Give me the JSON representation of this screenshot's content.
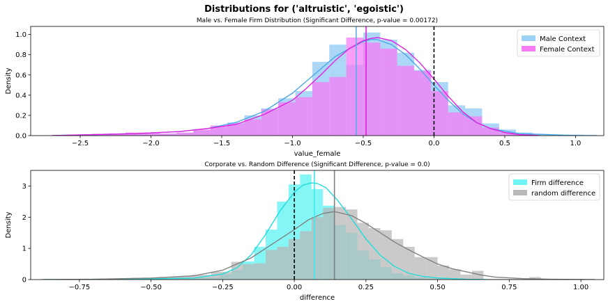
{
  "figure": {
    "suptitle": "Distributions for ('altruistic', 'egoistic')"
  },
  "chart_data": [
    {
      "type": "histogram+kde",
      "title": "Male vs. Female Firm Distribution (Significant Difference, p-value = 0.00172)",
      "xlabel": "value_female",
      "ylabel": "Density",
      "xlim": [
        -2.85,
        1.2
      ],
      "ylim": [
        0,
        1.08
      ],
      "xticks": [
        -2.5,
        -2.0,
        -1.5,
        -1.0,
        -0.5,
        0.0,
        0.5,
        1.0
      ],
      "xtick_labels": [
        "−2.5",
        "−2.0",
        "−1.5",
        "−1.0",
        "−0.5",
        "0.0",
        "0.5",
        "1.0"
      ],
      "yticks": [
        0.0,
        0.2,
        0.4,
        0.6,
        0.8,
        1.0
      ],
      "ytick_labels": [
        "0.0",
        "0.2",
        "0.4",
        "0.6",
        "0.8",
        "1.0"
      ],
      "legend_position": "top-right",
      "vlines": [
        {
          "x": 0.0,
          "style": "dashed",
          "color": "#000000"
        },
        {
          "x": -0.55,
          "style": "solid",
          "color": "#5aaee8"
        },
        {
          "x": -0.48,
          "style": "solid",
          "color": "#e020e0"
        }
      ],
      "series": [
        {
          "name": "Male Context",
          "color": "#9dd0f5",
          "line_color": "#4aa8e6",
          "bin_edges": [
            -2.66,
            -2.54,
            -2.42,
            -2.3,
            -2.18,
            -2.06,
            -1.94,
            -1.82,
            -1.7,
            -1.58,
            -1.46,
            -1.34,
            -1.22,
            -1.1,
            -0.98,
            -0.86,
            -0.74,
            -0.62,
            -0.5,
            -0.38,
            -0.26,
            -0.14,
            -0.02,
            0.1,
            0.22,
            0.34,
            0.46,
            0.58,
            0.7,
            0.82,
            0.94,
            1.06
          ],
          "bin_density": [
            0.0,
            0.0,
            0.01,
            0.02,
            0.02,
            0.02,
            0.02,
            0.03,
            0.05,
            0.08,
            0.13,
            0.2,
            0.27,
            0.37,
            0.44,
            0.73,
            0.9,
            0.7,
            1.02,
            0.95,
            0.82,
            0.65,
            0.53,
            0.3,
            0.27,
            0.12,
            0.06,
            0.03,
            0.01,
            0.0,
            0.01
          ],
          "kde": {
            "x": [
              -2.7,
              -2.4,
              -2.1,
              -1.8,
              -1.6,
              -1.4,
              -1.2,
              -1.0,
              -0.9,
              -0.8,
              -0.7,
              -0.6,
              -0.5,
              -0.45,
              -0.4,
              -0.3,
              -0.2,
              -0.1,
              0.0,
              0.1,
              0.2,
              0.3,
              0.4,
              0.6,
              0.8,
              1.0,
              1.15
            ],
            "y": [
              0.0,
              0.01,
              0.02,
              0.04,
              0.07,
              0.13,
              0.24,
              0.42,
              0.54,
              0.66,
              0.78,
              0.86,
              0.93,
              0.95,
              0.95,
              0.9,
              0.8,
              0.66,
              0.5,
              0.35,
              0.22,
              0.13,
              0.07,
              0.02,
              0.01,
              0.0,
              0.0
            ]
          }
        },
        {
          "name": "Female Context",
          "color": "#f57cf5",
          "line_color": "#e020e0",
          "bin_edges": [
            -2.66,
            -2.54,
            -2.42,
            -2.3,
            -2.18,
            -2.06,
            -1.94,
            -1.82,
            -1.7,
            -1.58,
            -1.46,
            -1.34,
            -1.22,
            -1.1,
            -0.98,
            -0.86,
            -0.74,
            -0.62,
            -0.5,
            -0.38,
            -0.26,
            -0.14,
            -0.02,
            0.1,
            0.22,
            0.34,
            0.46,
            0.58,
            0.7,
            0.82,
            0.94,
            1.06
          ],
          "bin_density": [
            0.0,
            0.0,
            0.01,
            0.02,
            0.03,
            0.03,
            0.02,
            0.03,
            0.06,
            0.1,
            0.12,
            0.16,
            0.26,
            0.33,
            0.38,
            0.53,
            0.58,
            0.97,
            0.92,
            0.86,
            0.69,
            0.64,
            0.44,
            0.23,
            0.19,
            0.08,
            0.03,
            0.01,
            0.0,
            0.0,
            0.0
          ],
          "kde": {
            "x": [
              -2.7,
              -2.4,
              -2.1,
              -1.8,
              -1.6,
              -1.4,
              -1.2,
              -1.0,
              -0.9,
              -0.8,
              -0.7,
              -0.6,
              -0.5,
              -0.45,
              -0.4,
              -0.3,
              -0.2,
              -0.1,
              0.0,
              0.1,
              0.2,
              0.3,
              0.4,
              0.5,
              0.6,
              0.75
            ],
            "y": [
              0.0,
              0.01,
              0.02,
              0.04,
              0.07,
              0.11,
              0.21,
              0.35,
              0.47,
              0.6,
              0.74,
              0.86,
              0.94,
              0.96,
              0.97,
              0.94,
              0.85,
              0.72,
              0.56,
              0.39,
              0.24,
              0.13,
              0.07,
              0.03,
              0.01,
              0.0
            ]
          }
        }
      ]
    },
    {
      "type": "histogram+kde",
      "title": "Corporate vs. Random Difference (Significant Difference, p-value = 0.0)",
      "xlabel": "difference",
      "ylabel": "Density",
      "xlim": [
        -0.92,
        1.08
      ],
      "ylim": [
        0,
        3.5
      ],
      "xticks": [
        -0.75,
        -0.5,
        -0.25,
        0.0,
        0.25,
        0.5,
        0.75,
        1.0
      ],
      "xtick_labels": [
        "−0.75",
        "−0.50",
        "−0.25",
        "0.00",
        "0.25",
        "0.50",
        "0.75",
        "1.00"
      ],
      "yticks": [
        0,
        1,
        2,
        3
      ],
      "ytick_labels": [
        "0",
        "1",
        "2",
        "3"
      ],
      "legend_position": "top-right",
      "vlines": [
        {
          "x": 0.0,
          "style": "dashed",
          "color": "#000000"
        },
        {
          "x": 0.07,
          "style": "solid",
          "color": "#40e8e8"
        },
        {
          "x": 0.14,
          "style": "solid",
          "color": "#808080"
        }
      ],
      "series": [
        {
          "name": "Firm difference",
          "color": "#6ff5f5",
          "line_color": "#20dcdc",
          "bin_edges": [
            -0.89,
            -0.82,
            -0.75,
            -0.68,
            -0.61,
            -0.54,
            -0.47,
            -0.4,
            -0.33,
            -0.26,
            -0.22,
            -0.18,
            -0.14,
            -0.1,
            -0.06,
            -0.02,
            0.02,
            0.06,
            0.1,
            0.14,
            0.18,
            0.22,
            0.26,
            0.3,
            0.34,
            0.38,
            0.42,
            0.46,
            0.5,
            0.54,
            0.58,
            0.62,
            0.66
          ],
          "bin_density": [
            0.01,
            0.0,
            0.0,
            0.0,
            0.0,
            0.02,
            0.03,
            0.04,
            0.06,
            0.17,
            0.3,
            0.58,
            1.05,
            1.6,
            2.5,
            3.05,
            3.37,
            2.9,
            2.37,
            1.75,
            1.5,
            0.93,
            0.65,
            0.4,
            0.2,
            0.13,
            0.07,
            0.03,
            0.02,
            0.01,
            0.0,
            0.0
          ],
          "kde": {
            "x": [
              -0.88,
              -0.7,
              -0.5,
              -0.35,
              -0.25,
              -0.2,
              -0.15,
              -0.1,
              -0.05,
              0.0,
              0.03,
              0.06,
              0.08,
              0.11,
              0.15,
              0.2,
              0.25,
              0.3,
              0.35,
              0.4,
              0.45,
              0.5,
              0.55,
              0.6,
              0.67
            ],
            "y": [
              0.0,
              0.01,
              0.02,
              0.05,
              0.18,
              0.38,
              0.8,
              1.45,
              2.2,
              2.8,
              3.03,
              3.1,
              3.08,
              2.95,
              2.55,
              1.95,
              1.3,
              0.78,
              0.42,
              0.2,
              0.1,
              0.05,
              0.03,
              0.01,
              0.0
            ]
          }
        },
        {
          "name": "random difference",
          "color": "#b8b8b8",
          "line_color": "#808080",
          "bin_edges": [
            -0.57,
            -0.5,
            -0.43,
            -0.36,
            -0.29,
            -0.22,
            -0.18,
            -0.14,
            -0.1,
            -0.06,
            -0.02,
            0.02,
            0.06,
            0.1,
            0.14,
            0.18,
            0.22,
            0.26,
            0.3,
            0.34,
            0.38,
            0.42,
            0.46,
            0.5,
            0.54,
            0.58,
            0.62,
            0.66,
            0.74,
            0.82,
            0.86
          ],
          "bin_density": [
            0.05,
            0.06,
            0.1,
            0.15,
            0.25,
            0.57,
            0.5,
            0.52,
            0.95,
            1.05,
            1.3,
            1.55,
            2.0,
            2.3,
            2.33,
            2.25,
            1.82,
            1.65,
            1.58,
            1.3,
            1.05,
            0.72,
            0.72,
            0.45,
            0.33,
            0.16,
            0.28,
            0.02,
            0.02,
            0.08
          ],
          "kde": {
            "x": [
              -0.88,
              -0.7,
              -0.5,
              -0.35,
              -0.25,
              -0.15,
              -0.05,
              0.0,
              0.05,
              0.1,
              0.14,
              0.2,
              0.25,
              0.3,
              0.35,
              0.4,
              0.45,
              0.5,
              0.55,
              0.6,
              0.65,
              0.7,
              0.8,
              0.9,
              1.05
            ],
            "y": [
              0.0,
              0.01,
              0.05,
              0.12,
              0.3,
              0.7,
              1.3,
              1.6,
              1.92,
              2.12,
              2.18,
              2.05,
              1.8,
              1.5,
              1.2,
              0.95,
              0.72,
              0.5,
              0.35,
              0.25,
              0.15,
              0.08,
              0.03,
              0.01,
              0.0
            ]
          }
        }
      ]
    }
  ]
}
